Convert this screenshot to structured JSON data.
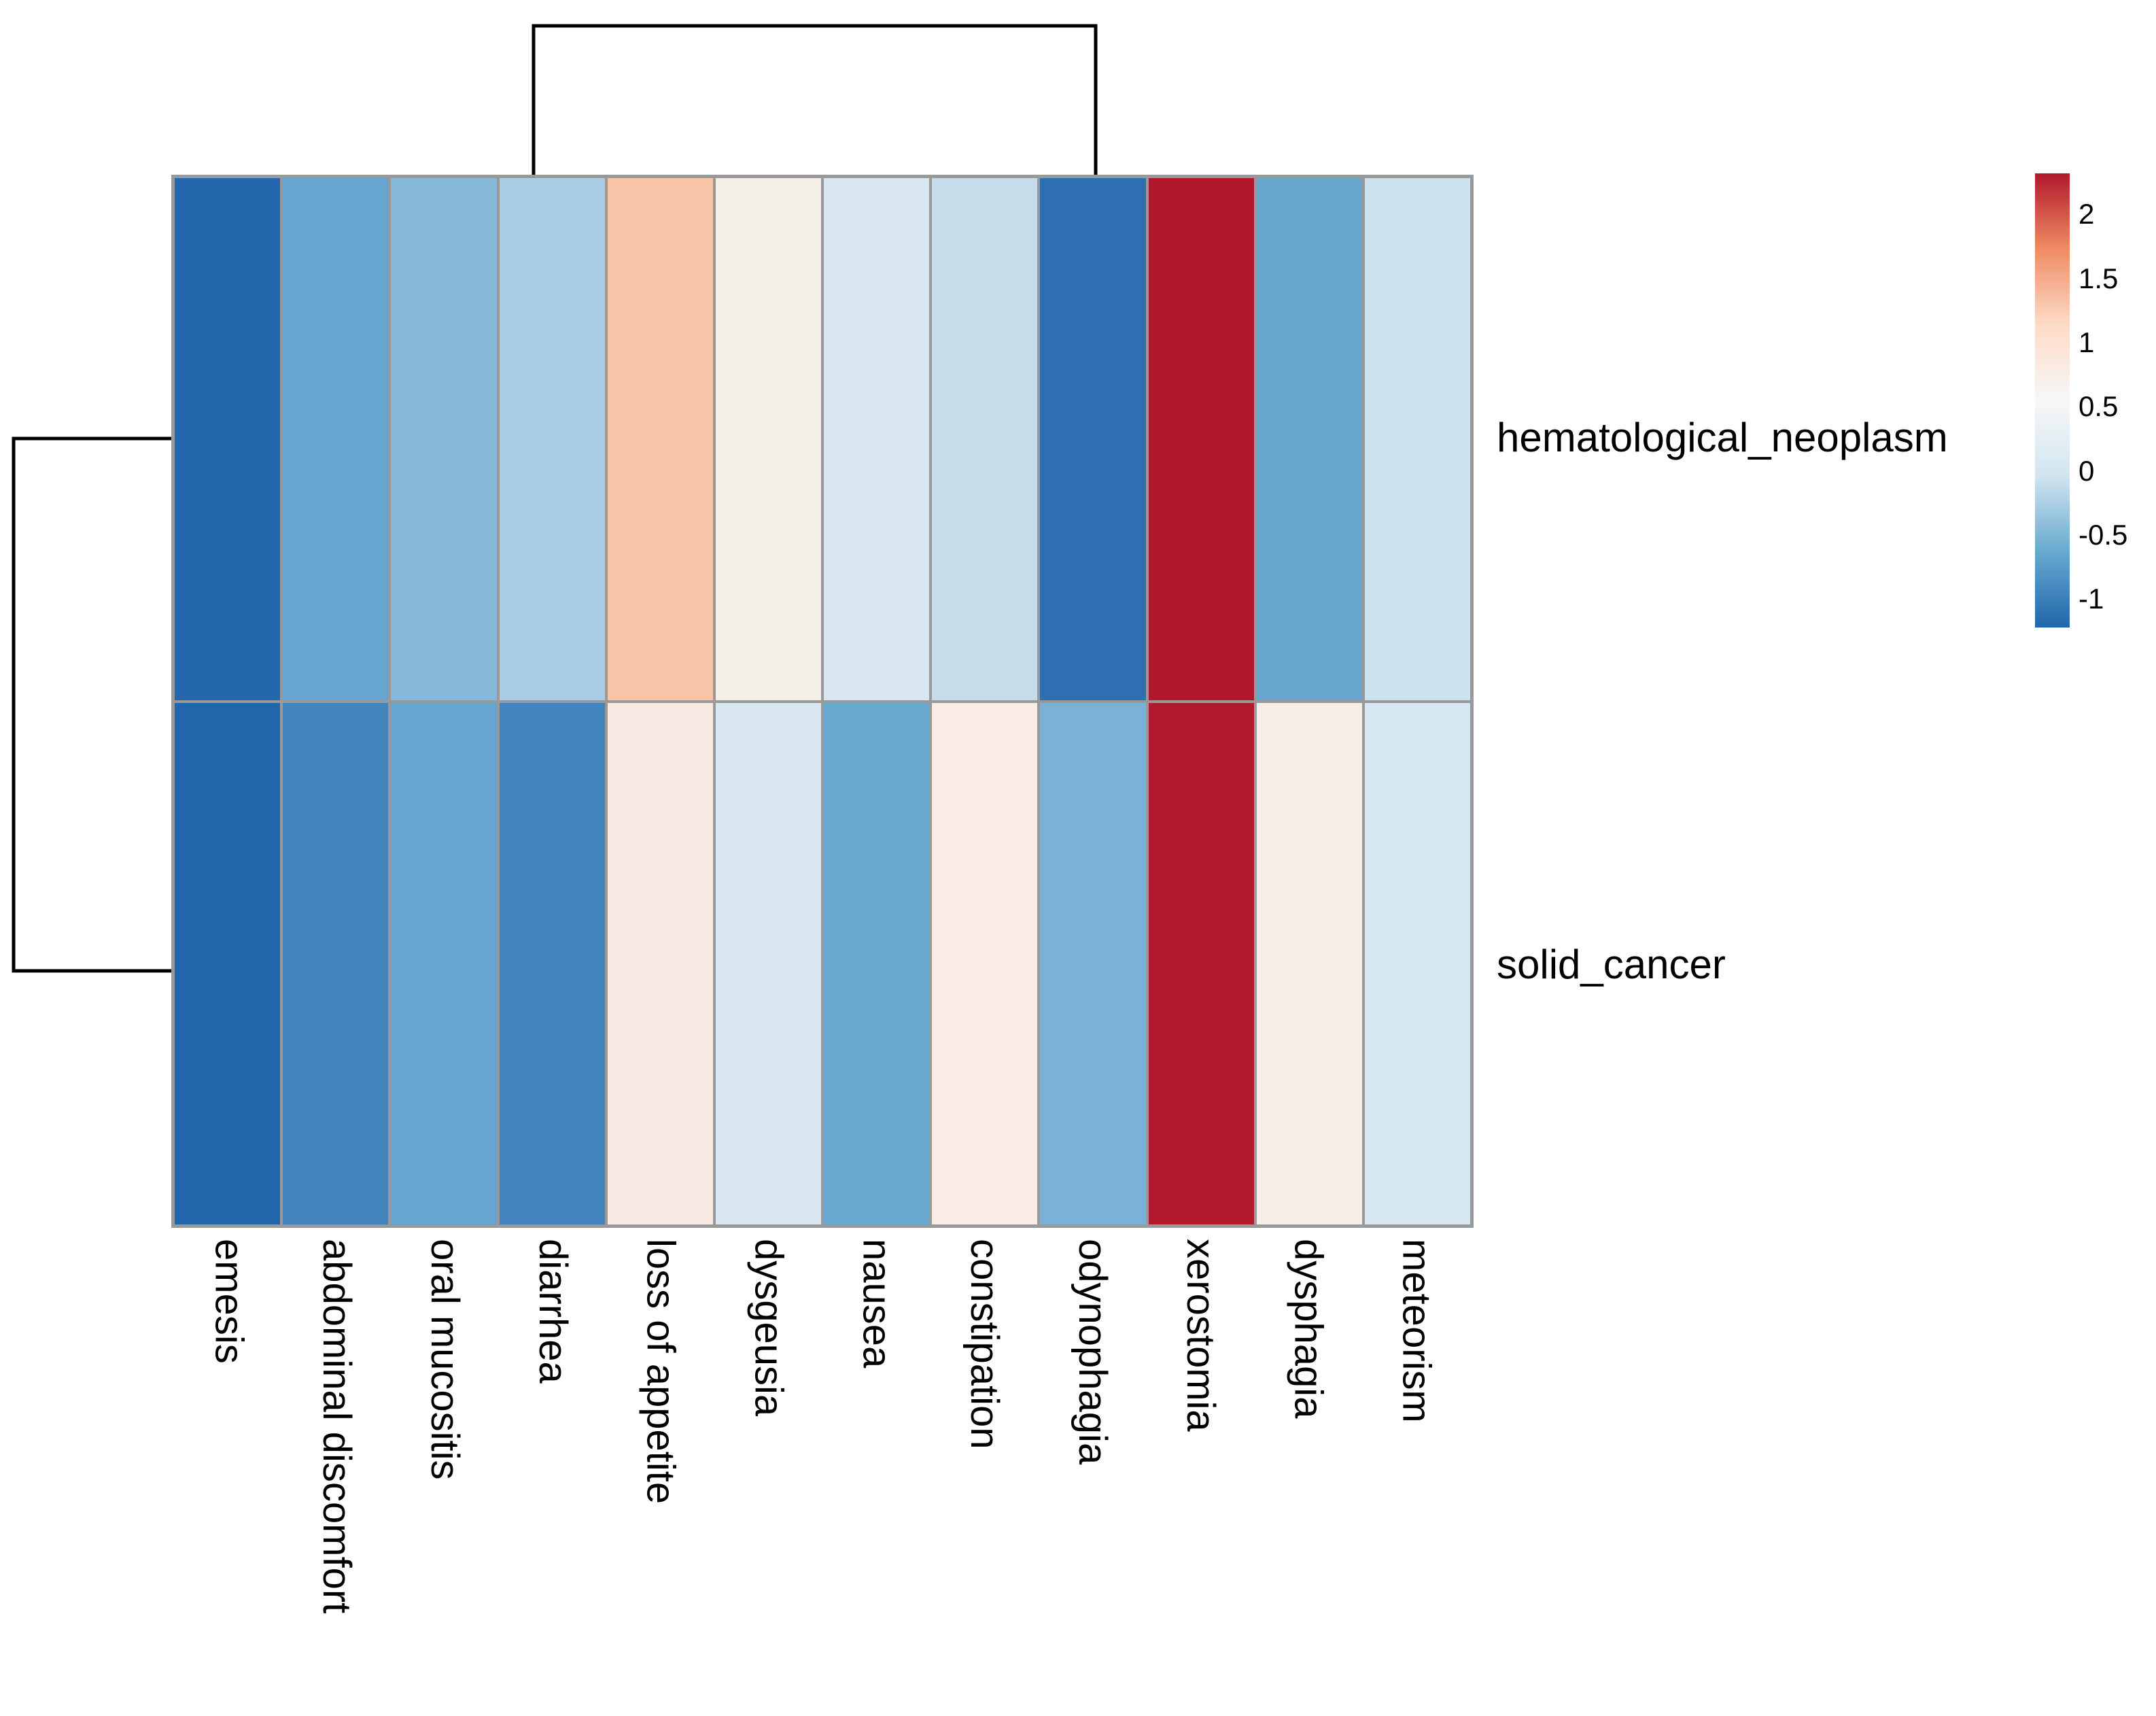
{
  "row_labels": [
    "hematological_neoplasm",
    "solid_cancer"
  ],
  "col_labels": [
    "emesis",
    "abdominal discomfort",
    "oral mucositis",
    "diarrhea",
    "loss of appetite",
    "dysgeusia",
    "nausea",
    "constipation",
    "odynophagia",
    "xerostomia",
    "dysphagia",
    "meteorism"
  ],
  "legend": {
    "ticks": [
      {
        "label": "2",
        "value": 2
      },
      {
        "label": "1.5",
        "value": 1.5
      },
      {
        "label": "1",
        "value": 1
      },
      {
        "label": "0.5",
        "value": 0.5
      },
      {
        "label": "0",
        "value": 0
      },
      {
        "label": "-0.5",
        "value": -0.5
      },
      {
        "label": "-1",
        "value": -1
      }
    ],
    "gradient_anchors": [
      {
        "value": 2.32,
        "color": "#b2182b"
      },
      {
        "value": 1.74,
        "color": "#ef8a62"
      },
      {
        "value": 1.14,
        "color": "#fddbc7"
      },
      {
        "value": 0.55,
        "color": "#f7f7f7"
      },
      {
        "value": -0.04,
        "color": "#d1e5f0"
      },
      {
        "value": -0.63,
        "color": "#67a9cf"
      },
      {
        "value": -1.22,
        "color": "#2166ac"
      }
    ]
  },
  "chart_data": {
    "type": "heatmap",
    "title": "",
    "rows": [
      "hematological_neoplasm",
      "solid_cancer"
    ],
    "columns": [
      "emesis",
      "abdominal discomfort",
      "oral mucositis",
      "diarrhea",
      "loss of appetite",
      "dysgeusia",
      "nausea",
      "constipation",
      "odynophagia",
      "xerostomia",
      "dysphagia",
      "meteorism"
    ],
    "values": [
      [
        -1.1,
        -0.6,
        -0.45,
        -0.3,
        1.35,
        0.6,
        0.0,
        -0.1,
        -1.05,
        2.3,
        -0.6,
        -0.05
      ],
      [
        -1.2,
        -0.9,
        -0.6,
        -0.95,
        0.65,
        0.0,
        -0.6,
        0.65,
        -0.5,
        2.3,
        0.6,
        -0.05
      ]
    ],
    "colors": [
      [
        "#2467ac",
        "#67a4d0",
        "#85b8d9",
        "#a8cde4",
        "#f8c4a7",
        "#f4efe9",
        "#d8e6ef",
        "#c7dcea",
        "#2e6fb1",
        "#b2182b",
        "#68a6d0",
        "#cde2ef"
      ],
      [
        "#2365ab",
        "#4484bd",
        "#67a4cf",
        "#4183bc",
        "#f9ebe3",
        "#d9e7f0",
        "#6aa7d0",
        "#f9ece4",
        "#7ab1d6",
        "#b11a2c",
        "#f7eee8",
        "#d6e7f1"
      ]
    ],
    "zlim": [
      -1.22,
      2.32
    ],
    "colormap": "RdBu reversed (blue = low, red = high)",
    "legend_position": "right",
    "row_dendrogram": "single top-level link joining the two rows",
    "column_dendrogram": "top-level link joining two column clusters",
    "grid": "gray cell borders"
  },
  "style": {
    "grid_color": "#999999",
    "dendrogram_color": "#000000",
    "background": "#ffffff"
  }
}
